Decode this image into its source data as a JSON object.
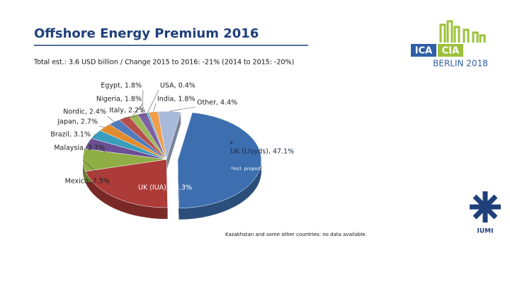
{
  "chart_data": {
    "type": "pie",
    "title": "Offshore Energy Premium 2016",
    "subtitle": "Total est.: 3.6 USD billion / Change 2015 to 2016: -21% (2014 to 2015: -20%)",
    "values": [
      47.1,
      21.3,
      7.5,
      3.7,
      3.1,
      2.7,
      2.4,
      2.2,
      1.8,
      1.8,
      0.4,
      1.8,
      4.4
    ],
    "value_labels": [
      "UK (Lloyds), 47.1%",
      "UK (IUA), 21.3%",
      "Mexico, 7.5%",
      "Malaysia, 3.7%",
      "Brazil, 3.1%",
      "Japan, 2.7%",
      "Nordic, 2.4%",
      "Italy, 2.2%",
      "Nigeria, 1.8%",
      "Egypt, 1.8%",
      "USA, 0.4%",
      "India, 1.8%",
      "Other, 4.4%"
    ],
    "colors": [
      "#3d6fb0",
      "#ad3b37",
      "#8fae45",
      "#6b4e94",
      "#3a9dbd",
      "#e38b2f",
      "#4f7cbb",
      "#b84f4c",
      "#9bb85a",
      "#7d5fa3",
      "#4fb0cc",
      "#f09c4a",
      "#a9b9d9"
    ],
    "annotations": [
      "*",
      "*incl. proportional and facultative reinsurance",
      "Kazakhstan and some other countries: no data available."
    ]
  },
  "logo": {
    "left": "ICA",
    "right": "CIA",
    "event": "BERLIN 2018",
    "org": "IUMI"
  }
}
